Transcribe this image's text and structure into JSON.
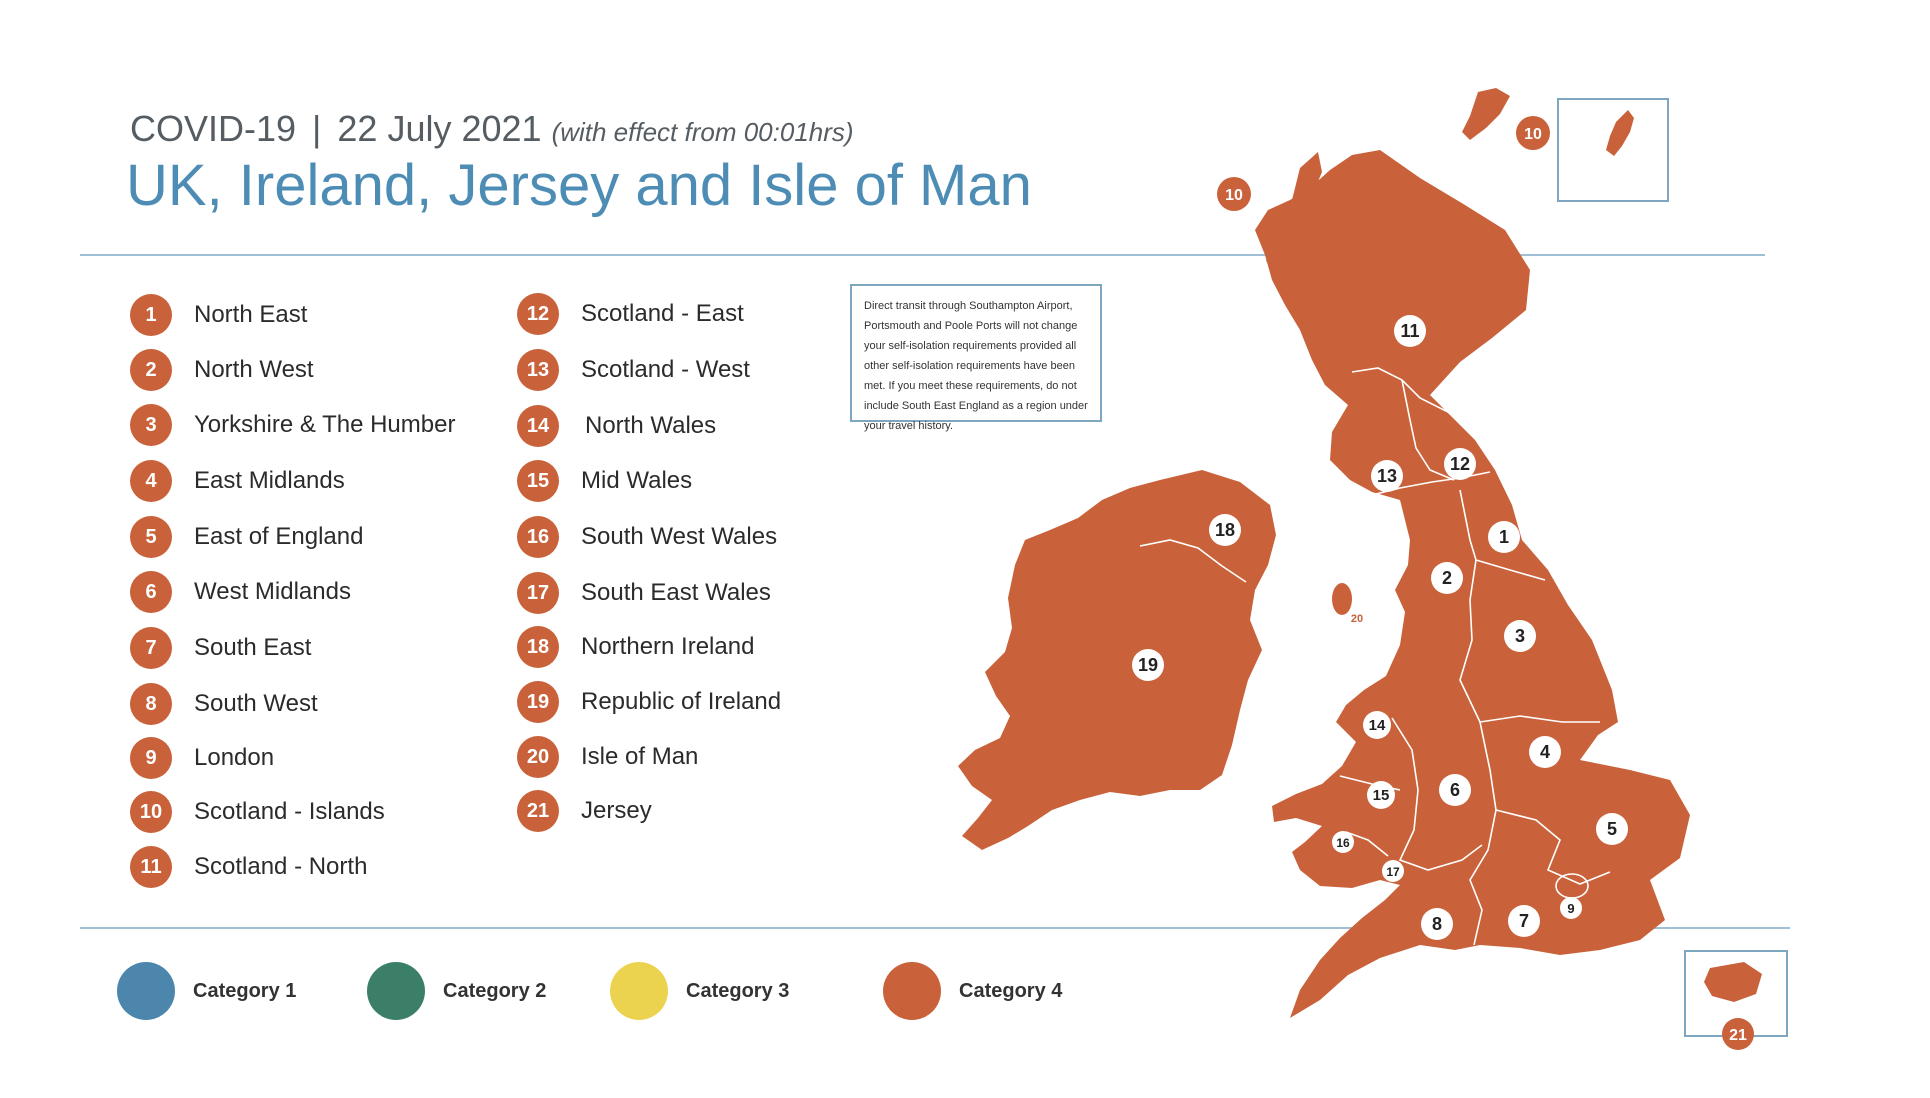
{
  "header": {
    "prefix": "COVID-19",
    "separator": "|",
    "date": "22 July 2021",
    "effect": "(with effect from 00:01hrs)",
    "title": "UK, Ireland, Jersey and Isle of Man"
  },
  "regions": [
    {
      "num": "1",
      "name": "North East"
    },
    {
      "num": "2",
      "name": "North West"
    },
    {
      "num": "3",
      "name": "Yorkshire & The Humber"
    },
    {
      "num": "4",
      "name": "East Midlands"
    },
    {
      "num": "5",
      "name": "East of England"
    },
    {
      "num": "6",
      "name": "West Midlands"
    },
    {
      "num": "7",
      "name": "South East"
    },
    {
      "num": "8",
      "name": "South West"
    },
    {
      "num": "9",
      "name": "London"
    },
    {
      "num": "10",
      "name": "Scotland - Islands"
    },
    {
      "num": "11",
      "name": "Scotland - North"
    },
    {
      "num": "12",
      "name": "Scotland - East"
    },
    {
      "num": "13",
      "name": "Scotland - West"
    },
    {
      "num": "14",
      "name": "North Wales"
    },
    {
      "num": "15",
      "name": "Mid Wales"
    },
    {
      "num": "16",
      "name": "South West Wales"
    },
    {
      "num": "17",
      "name": "South East Wales"
    },
    {
      "num": "18",
      "name": "Northern Ireland"
    },
    {
      "num": "19",
      "name": "Republic of Ireland"
    },
    {
      "num": "20",
      "name": "Isle of Man"
    },
    {
      "num": "21",
      "name": "Jersey"
    }
  ],
  "note": "Direct transit through Southampton Airport, Portsmouth and Poole Ports will not change your self-isolation requirements provided all other self-isolation requirements have been met. If you meet these requirements, do not include South East England as a region under your travel history.",
  "categories": [
    {
      "label": "Category 1",
      "color": "#4d86ad"
    },
    {
      "label": "Category 2",
      "color": "#3c7f68"
    },
    {
      "label": "Category 3",
      "color": "#ecd34f"
    },
    {
      "label": "Category 4",
      "color": "#c9623a"
    }
  ],
  "map": {
    "fill_color": "#c9623a",
    "all_regions_category": "Category 4",
    "markers": [
      "1",
      "2",
      "3",
      "4",
      "5",
      "6",
      "7",
      "8",
      "9",
      "10",
      "10",
      "11",
      "12",
      "13",
      "14",
      "15",
      "16",
      "17",
      "18",
      "19",
      "20",
      "21"
    ]
  }
}
